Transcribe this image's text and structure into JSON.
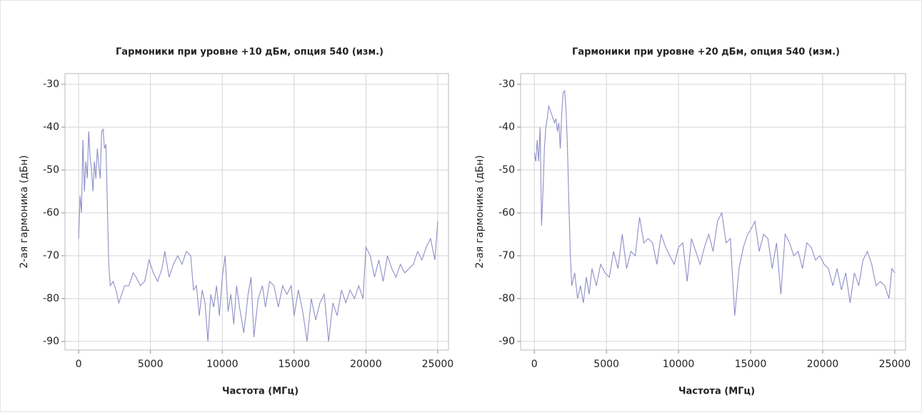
{
  "chart_data": [
    {
      "type": "line",
      "title": "Гармоники при уровне +10 дБм, опция 540 (изм.)",
      "xlabel": "Частота (МГц)",
      "ylabel": "2-ая гармоника (дБн)",
      "color": "#8e8ec8",
      "grid": true,
      "xlim": [
        -950,
        25750
      ],
      "ylim": [
        -92,
        -27.5
      ],
      "xticks": [
        0,
        5000,
        10000,
        15000,
        20000,
        25000
      ],
      "yticks": [
        -30,
        -40,
        -50,
        -60,
        -70,
        -80,
        -90
      ],
      "x": [
        0,
        100,
        200,
        300,
        400,
        500,
        600,
        700,
        800,
        900,
        1000,
        1100,
        1200,
        1300,
        1400,
        1500,
        1600,
        1700,
        1800,
        1900,
        2000,
        2100,
        2200,
        2400,
        2600,
        2800,
        3000,
        3200,
        3500,
        3800,
        4000,
        4300,
        4600,
        4900,
        5200,
        5500,
        5800,
        6000,
        6300,
        6600,
        6900,
        7200,
        7500,
        7800,
        8000,
        8200,
        8400,
        8600,
        8800,
        9000,
        9200,
        9400,
        9600,
        9800,
        10000,
        10200,
        10400,
        10600,
        10800,
        11000,
        11200,
        11500,
        11800,
        12000,
        12200,
        12500,
        12800,
        13000,
        13300,
        13600,
        13900,
        14200,
        14500,
        14800,
        15000,
        15300,
        15600,
        15900,
        16200,
        16500,
        16800,
        17100,
        17400,
        17700,
        18000,
        18300,
        18600,
        18900,
        19200,
        19500,
        19800,
        20000,
        20300,
        20600,
        20900,
        21200,
        21500,
        21800,
        22100,
        22400,
        22700,
        23000,
        23300,
        23600,
        23900,
        24200,
        24500,
        24800,
        25000
      ],
      "values": [
        -66,
        -56,
        -60,
        -43,
        -55,
        -48,
        -52,
        -41,
        -47,
        -50,
        -55,
        -48,
        -52,
        -45,
        -49,
        -52,
        -41,
        -40.5,
        -45,
        -44,
        -58,
        -72,
        -77,
        -76,
        -78,
        -81,
        -79,
        -77,
        -77,
        -74,
        -75,
        -77,
        -76,
        -71,
        -74,
        -76,
        -73,
        -69,
        -75,
        -72,
        -70,
        -72,
        -69,
        -70,
        -78,
        -77,
        -84,
        -78,
        -81,
        -90,
        -79,
        -82,
        -77,
        -84,
        -75,
        -70,
        -83,
        -79,
        -86,
        -77,
        -82,
        -88,
        -79,
        -75,
        -89,
        -80,
        -77,
        -82,
        -76,
        -77,
        -82,
        -77,
        -79,
        -77,
        -84,
        -78,
        -83,
        -90,
        -80,
        -85,
        -81,
        -79,
        -90,
        -81,
        -84,
        -78,
        -81,
        -78,
        -80,
        -77,
        -80,
        -68,
        -70,
        -75,
        -71,
        -76,
        -70,
        -73,
        -75,
        -72,
        -74,
        -73,
        -72,
        -69,
        -71,
        -68,
        -66,
        -71,
        -62
      ]
    },
    {
      "type": "line",
      "title": "Гармоники при уровне +20 дБм, опция 540 (изм.)",
      "xlabel": "Частота (МГц)",
      "ylabel": "2-ая гармоника (дБн)",
      "color": "#8e8ec8",
      "grid": true,
      "xlim": [
        -950,
        25750
      ],
      "ylim": [
        -92,
        -27.5
      ],
      "xticks": [
        0,
        5000,
        10000,
        15000,
        20000,
        25000
      ],
      "yticks": [
        -30,
        -40,
        -50,
        -60,
        -70,
        -80,
        -90
      ],
      "x": [
        0,
        100,
        200,
        300,
        400,
        500,
        600,
        700,
        800,
        900,
        1000,
        1200,
        1400,
        1500,
        1600,
        1700,
        1800,
        1900,
        2000,
        2100,
        2200,
        2300,
        2400,
        2500,
        2600,
        2800,
        3000,
        3200,
        3400,
        3600,
        3800,
        4000,
        4300,
        4600,
        4900,
        5200,
        5500,
        5800,
        6100,
        6400,
        6700,
        7000,
        7300,
        7600,
        7900,
        8200,
        8500,
        8800,
        9100,
        9400,
        9700,
        10000,
        10300,
        10600,
        10900,
        11200,
        11500,
        11800,
        12100,
        12400,
        12700,
        13000,
        13300,
        13600,
        13900,
        14200,
        14500,
        14800,
        15000,
        15300,
        15600,
        15900,
        16200,
        16500,
        16800,
        17100,
        17400,
        17700,
        18000,
        18300,
        18600,
        18900,
        19200,
        19500,
        19800,
        20100,
        20400,
        20700,
        21000,
        21300,
        21600,
        21900,
        22200,
        22500,
        22800,
        23100,
        23400,
        23700,
        24000,
        24300,
        24600,
        24800,
        25000
      ],
      "values": [
        -46,
        -48,
        -43,
        -48,
        -40,
        -63,
        -55,
        -45,
        -40,
        -38,
        -35,
        -37,
        -39,
        -38,
        -41,
        -39,
        -45,
        -37,
        -32,
        -31.5,
        -36,
        -45,
        -58,
        -70,
        -77,
        -74,
        -80,
        -77,
        -81,
        -75,
        -79,
        -73,
        -77,
        -72,
        -74,
        -75,
        -69,
        -73,
        -65,
        -73,
        -69,
        -70,
        -61,
        -67,
        -66,
        -67,
        -72,
        -65,
        -68,
        -70,
        -72,
        -68,
        -67,
        -76,
        -66,
        -69,
        -72,
        -68,
        -65,
        -69,
        -62,
        -60,
        -67,
        -66,
        -84,
        -73,
        -68,
        -65,
        -64,
        -62,
        -69,
        -65,
        -66,
        -73,
        -67,
        -79,
        -65,
        -67,
        -70,
        -69,
        -73,
        -67,
        -68,
        -71,
        -70,
        -72,
        -73,
        -77,
        -73,
        -78,
        -74,
        -81,
        -74,
        -77,
        -71,
        -69,
        -72,
        -77,
        -76,
        -77,
        -80,
        -73,
        -74
      ]
    }
  ]
}
